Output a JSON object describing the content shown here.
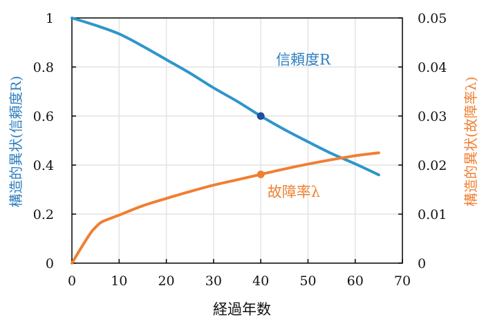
{
  "chart_data": {
    "type": "line",
    "xlabel": "経過年数",
    "ylabel_left": "構造的異状(信頼度R)",
    "ylabel_right": "構造的異状(故障率λ)",
    "xlim": [
      0,
      70
    ],
    "ylim_left": [
      0,
      1
    ],
    "ylim_right": [
      0,
      0.05
    ],
    "x_ticks": [
      "0",
      "10",
      "20",
      "30",
      "40",
      "50",
      "60",
      "70"
    ],
    "y_left_ticks": [
      "0",
      "0.2",
      "0.4",
      "0.6",
      "0.8",
      "1"
    ],
    "y_right_ticks": [
      "0",
      "0.01",
      "0.02",
      "0.03",
      "0.04",
      "0.05"
    ],
    "grid": true,
    "series": [
      {
        "name": "信頼度R",
        "axis": "left",
        "color": "#2e95cc",
        "x": [
          0,
          5,
          10,
          15,
          20,
          25,
          30,
          35,
          40,
          45,
          50,
          55,
          60,
          65
        ],
        "y": [
          1,
          0.97,
          0.935,
          0.885,
          0.83,
          0.775,
          0.715,
          0.66,
          0.6,
          0.545,
          0.495,
          0.447,
          0.405,
          0.36
        ],
        "marker": {
          "x": 40,
          "y": 0.6,
          "color": "#1f4e9c"
        }
      },
      {
        "name": "故障率λ",
        "axis": "right",
        "color": "#f07f32",
        "x": [
          0,
          2,
          4,
          5,
          6,
          7,
          10,
          15,
          20,
          25,
          30,
          35,
          40,
          45,
          50,
          55,
          60,
          65
        ],
        "y": [
          0,
          0.0032,
          0.0062,
          0.0073,
          0.0082,
          0.0087,
          0.0098,
          0.0117,
          0.0132,
          0.0146,
          0.0159,
          0.017,
          0.0181,
          0.0192,
          0.0202,
          0.0211,
          0.0219,
          0.0225
        ],
        "marker": {
          "x": 40,
          "y": 0.0181,
          "color": "#f07f32"
        }
      }
    ],
    "annotations": [
      {
        "text": "信頼度R",
        "x": 49,
        "y": 0.81,
        "color": "#2e7fc0",
        "axis": "left"
      },
      {
        "text": "故障率λ",
        "x": 47,
        "y": 0.27,
        "color": "#f07f32",
        "axis": "left"
      }
    ]
  }
}
